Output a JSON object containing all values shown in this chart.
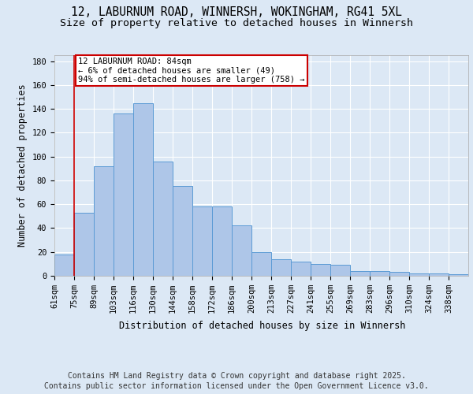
{
  "title_line1": "12, LABURNUM ROAD, WINNERSH, WOKINGHAM, RG41 5XL",
  "title_line2": "Size of property relative to detached houses in Winnersh",
  "xlabel": "Distribution of detached houses by size in Winnersh",
  "ylabel": "Number of detached properties",
  "footer_line1": "Contains HM Land Registry data © Crown copyright and database right 2025.",
  "footer_line2": "Contains public sector information licensed under the Open Government Licence v3.0.",
  "categories": [
    "61sqm",
    "75sqm",
    "89sqm",
    "103sqm",
    "116sqm",
    "130sqm",
    "144sqm",
    "158sqm",
    "172sqm",
    "186sqm",
    "200sqm",
    "213sqm",
    "227sqm",
    "241sqm",
    "255sqm",
    "269sqm",
    "283sqm",
    "296sqm",
    "310sqm",
    "324sqm",
    "338sqm"
  ],
  "values": [
    18,
    53,
    92,
    136,
    145,
    96,
    75,
    58,
    58,
    42,
    20,
    14,
    12,
    10,
    9,
    4,
    4,
    3,
    2,
    2,
    1
  ],
  "bar_color": "#aec6e8",
  "bar_edge_color": "#5b9bd5",
  "annotation_text": "12 LABURNUM ROAD: 84sqm\n← 6% of detached houses are smaller (49)\n94% of semi-detached houses are larger (758) →",
  "annotation_box_color": "#ffffff",
  "annotation_border_color": "#cc0000",
  "vline_x": 1,
  "vline_color": "#cc0000",
  "ylim": [
    0,
    185
  ],
  "yticks": [
    0,
    20,
    40,
    60,
    80,
    100,
    120,
    140,
    160,
    180
  ],
  "bg_color": "#dce8f5",
  "plot_bg_color": "#dce8f5",
  "grid_color": "#ffffff",
  "title_fontsize": 10.5,
  "subtitle_fontsize": 9.5,
  "axis_label_fontsize": 8.5,
  "tick_fontsize": 7.5,
  "footer_fontsize": 7.0,
  "annotation_fontsize": 7.5
}
